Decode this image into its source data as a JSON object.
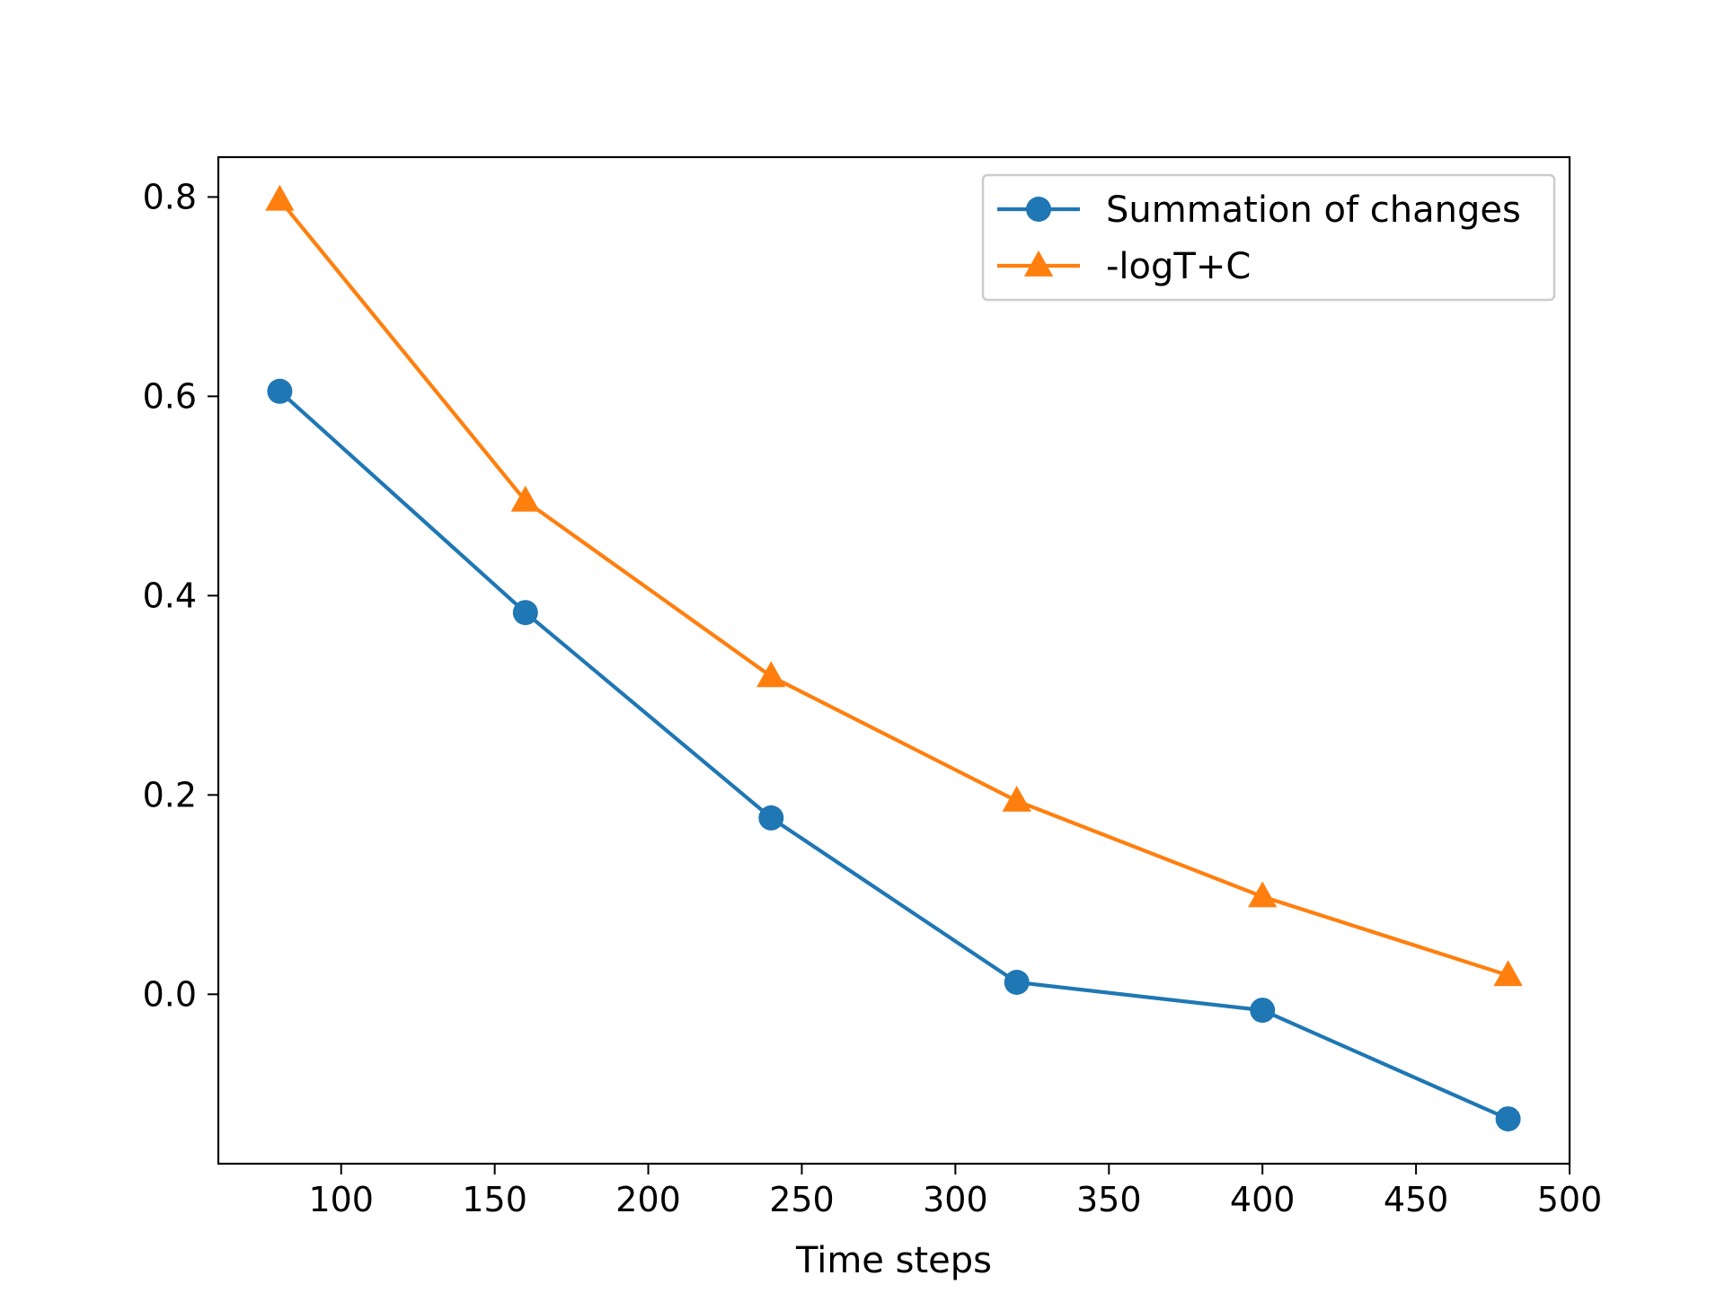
{
  "chart_data": {
    "type": "line",
    "title": "",
    "xlabel": "Time steps",
    "ylabel": "",
    "x": [
      80,
      160,
      240,
      320,
      400,
      480
    ],
    "series": [
      {
        "name": "Summation of changes",
        "values": [
          0.605,
          0.383,
          0.177,
          0.012,
          -0.016,
          -0.125
        ],
        "color": "#1f77b4",
        "marker": "circle"
      },
      {
        "name": "-logT+C",
        "values": [
          0.797,
          0.495,
          0.319,
          0.194,
          0.098,
          0.019
        ],
        "color": "#ff7f0e",
        "marker": "triangle"
      }
    ],
    "xlim": [
      60,
      500
    ],
    "ylim": [
      -0.17,
      0.84
    ],
    "xticks": [
      100,
      150,
      200,
      250,
      300,
      350,
      400,
      450,
      500
    ],
    "xtick_labels": [
      "100",
      "150",
      "200",
      "250",
      "300",
      "350",
      "400",
      "450",
      "500"
    ],
    "yticks": [
      0.0,
      0.2,
      0.4,
      0.6,
      0.8
    ],
    "ytick_labels": [
      "0.0",
      "0.2",
      "0.4",
      "0.6",
      "0.8"
    ],
    "grid": false,
    "legend_position": "upper right"
  }
}
